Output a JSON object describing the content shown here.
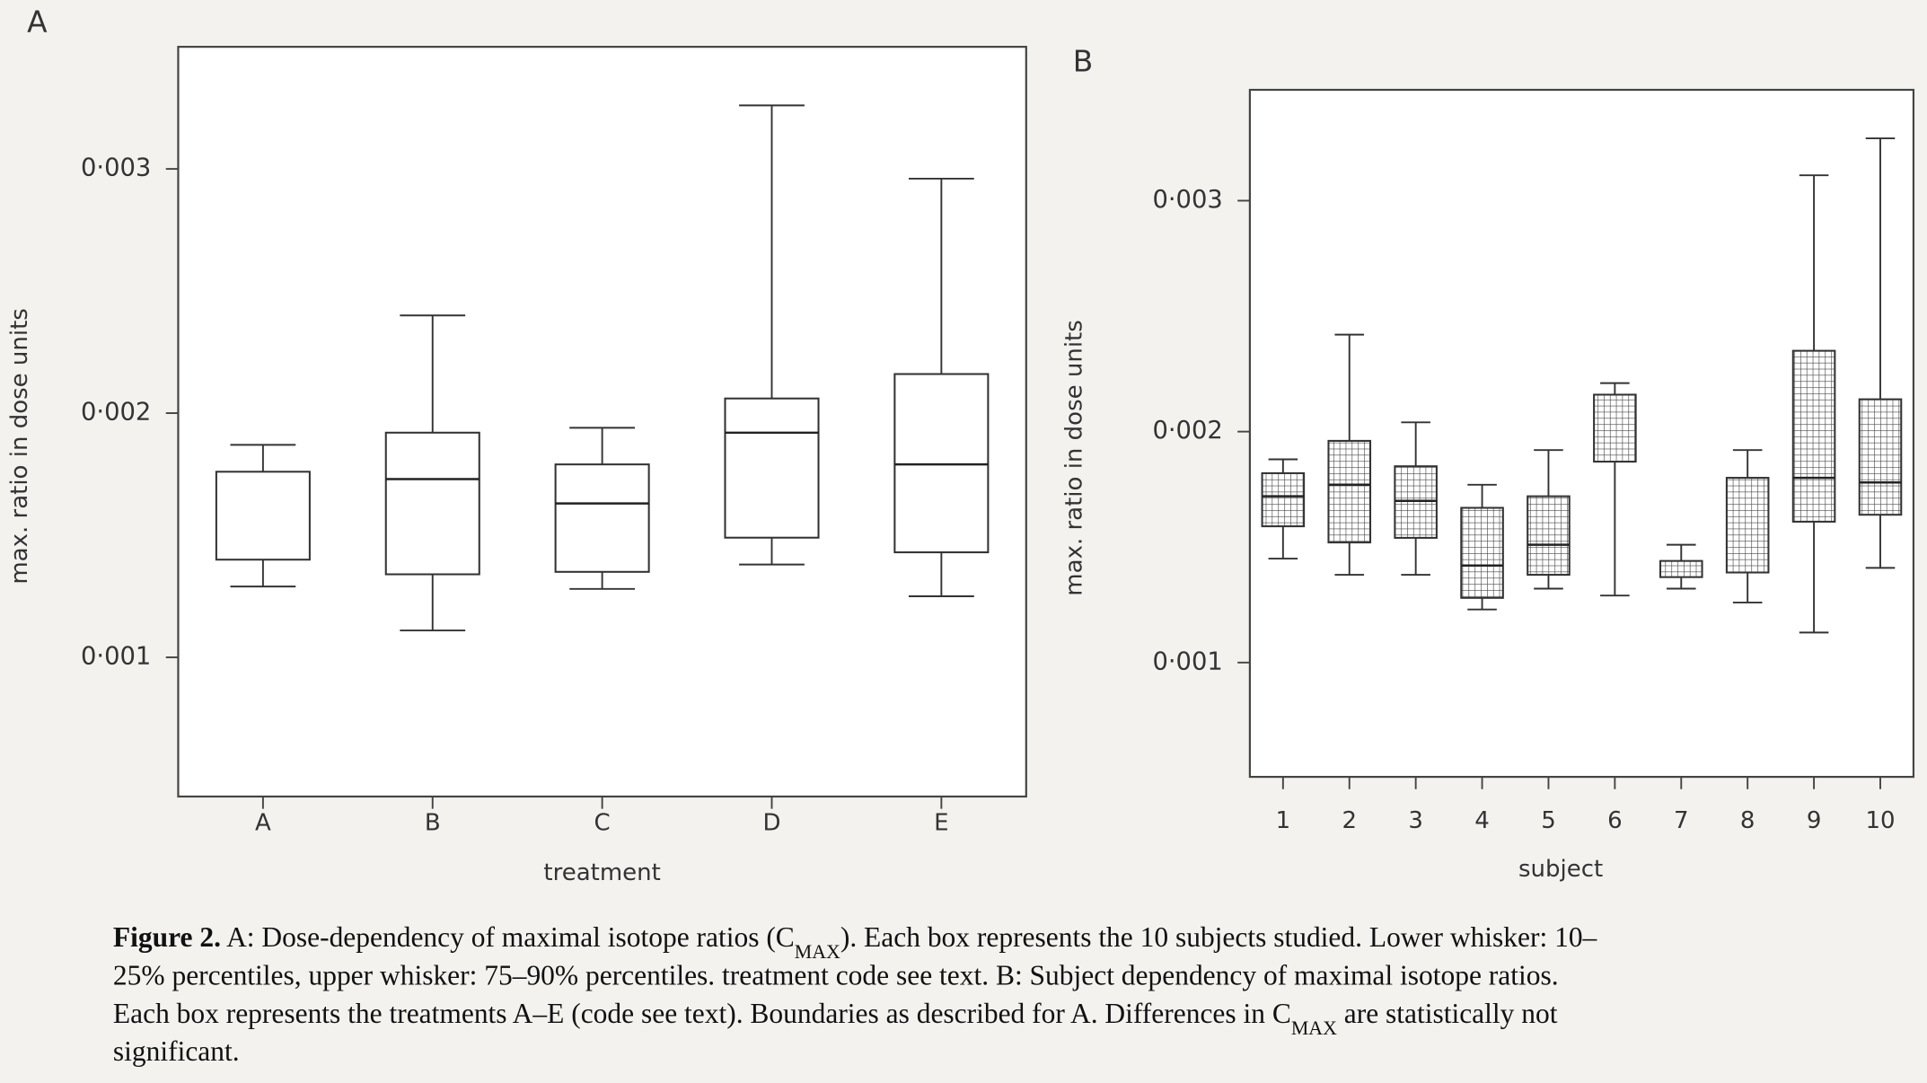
{
  "chart_data": [
    {
      "type": "box",
      "panel": "A",
      "x_label": "treatment",
      "y_label": "max. ratio in dose units",
      "categories": [
        "A",
        "B",
        "C",
        "D",
        "E"
      ],
      "boxes": [
        {
          "whislo": 0.00129,
          "q1": 0.0014,
          "med": null,
          "q3": 0.00176,
          "whishi": 0.00187
        },
        {
          "whislo": 0.00111,
          "q1": 0.00134,
          "med": 0.00173,
          "q3": 0.00192,
          "whishi": 0.0024
        },
        {
          "whislo": 0.00128,
          "q1": 0.00135,
          "med": 0.00163,
          "q3": 0.00179,
          "whishi": 0.00194
        },
        {
          "whislo": 0.00138,
          "q1": 0.00149,
          "med": 0.00192,
          "q3": 0.00206,
          "whishi": 0.00326
        },
        {
          "whislo": 0.00125,
          "q1": 0.00143,
          "med": 0.00179,
          "q3": 0.00216,
          "whishi": 0.00296
        }
      ],
      "hatch": false,
      "ylim": [
        0.00043,
        0.0035
      ],
      "yticks": [
        {
          "value": 0.001,
          "label": "0·001"
        },
        {
          "value": 0.002,
          "label": "0·002"
        },
        {
          "value": 0.003,
          "label": "0·003"
        }
      ]
    },
    {
      "type": "box",
      "panel": "B",
      "x_label": "subject",
      "y_label": "max. ratio in dose units",
      "categories": [
        "1",
        "2",
        "3",
        "4",
        "5",
        "6",
        "7",
        "8",
        "9",
        "10"
      ],
      "boxes": [
        {
          "whislo": 0.00145,
          "q1": 0.00159,
          "med": 0.00172,
          "q3": 0.00182,
          "whishi": 0.00188
        },
        {
          "whislo": 0.00138,
          "q1": 0.00152,
          "med": 0.00177,
          "q3": 0.00196,
          "whishi": 0.00242
        },
        {
          "whislo": 0.00138,
          "q1": 0.00154,
          "med": 0.0017,
          "q3": 0.00185,
          "whishi": 0.00204
        },
        {
          "whislo": 0.00123,
          "q1": 0.00128,
          "med": 0.00142,
          "q3": 0.00167,
          "whishi": 0.00177
        },
        {
          "whislo": 0.00132,
          "q1": 0.00138,
          "med": 0.00151,
          "q3": 0.00172,
          "whishi": 0.00192
        },
        {
          "whislo": 0.00129,
          "q1": 0.00187,
          "med": null,
          "q3": 0.00216,
          "whishi": 0.00221
        },
        {
          "whislo": 0.00132,
          "q1": 0.00137,
          "med": null,
          "q3": 0.00144,
          "whishi": 0.00151
        },
        {
          "whislo": 0.00126,
          "q1": 0.00139,
          "med": null,
          "q3": 0.0018,
          "whishi": 0.00192
        },
        {
          "whislo": 0.00113,
          "q1": 0.00161,
          "med": 0.0018,
          "q3": 0.00235,
          "whishi": 0.00311
        },
        {
          "whislo": 0.00141,
          "q1": 0.00164,
          "med": 0.00178,
          "q3": 0.00214,
          "whishi": 0.00327
        }
      ],
      "hatch": true,
      "ylim": [
        0.000505,
        0.00348
      ],
      "yticks": [
        {
          "value": 0.001,
          "label": "0·001"
        },
        {
          "value": 0.002,
          "label": "0·002"
        },
        {
          "value": 0.003,
          "label": "0·003"
        }
      ]
    }
  ],
  "caption": {
    "lines": [
      [
        {
          "text": "Figure 2.",
          "style": "bold"
        },
        {
          "text": " A: Dose-dependency of maximal isotope ratios (C",
          "style": "plain"
        },
        {
          "text": "MAX",
          "style": "sub"
        },
        {
          "text": "). Each box represents the 10 subjects studied. Lower whisker: 10–",
          "style": "plain"
        }
      ],
      [
        {
          "text": "25% percentiles, upper whisker: 75–90% percentiles. treatment code see text. B: Subject dependency of maximal isotope ratios.",
          "style": "plain"
        }
      ],
      [
        {
          "text": "Each box represents the treatments A–E (code see text). Boundaries as described for A. Differences in C",
          "style": "plain"
        },
        {
          "text": "MAX",
          "style": "sub"
        },
        {
          "text": " are statistically not",
          "style": "plain"
        }
      ],
      [
        {
          "text": "significant.",
          "style": "plain"
        }
      ]
    ]
  }
}
